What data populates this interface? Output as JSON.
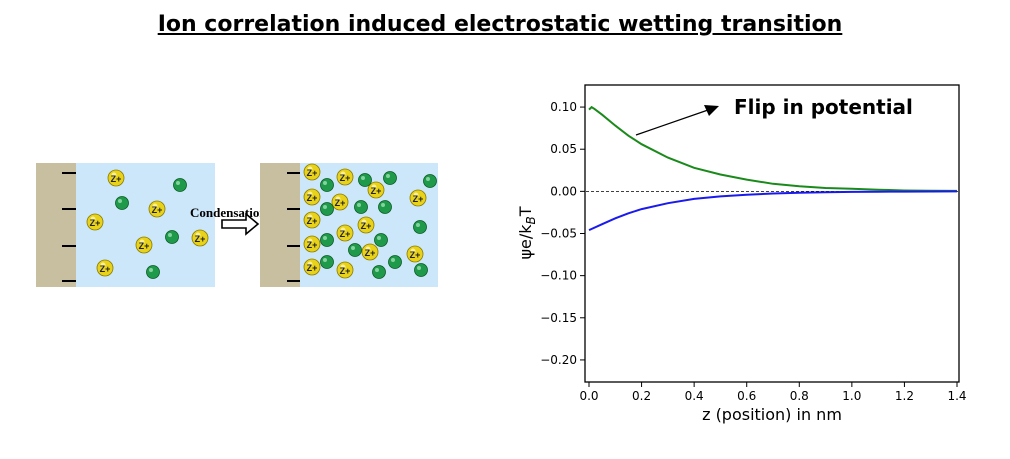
{
  "title": "Ion correlation induced electrostatic wetting transition",
  "diagram": {
    "arrow_label": "Condensation",
    "cation_label": "Z+",
    "colors": {
      "wall": "#c8bfa0",
      "solution": "#cce7f9",
      "cation": "#e8d21a",
      "anion": "#1f9a4a"
    }
  },
  "chart_data": {
    "type": "line",
    "title": "",
    "xlabel": "z (position) in nm",
    "ylabel_main": "ψe/k",
    "ylabel_sub": "B",
    "ylabel_tail": "T",
    "xlim": [
      0.0,
      1.4
    ],
    "ylim": [
      -0.225,
      0.125
    ],
    "xticks": [
      "0.0",
      "0.2",
      "0.4",
      "0.6",
      "0.8",
      "1.0",
      "1.2",
      "1.4"
    ],
    "yticks": [
      "0.10",
      "0.05",
      "0.00",
      "−0.05",
      "−0.10",
      "−0.15",
      "−0.20"
    ],
    "annotation": "Flip in potential",
    "series": [
      {
        "color": "#1a8a1a",
        "x": [
          0.0,
          0.01,
          0.02,
          0.05,
          0.1,
          0.15,
          0.2,
          0.3,
          0.4,
          0.5,
          0.6,
          0.7,
          0.8,
          0.9,
          1.0,
          1.1,
          1.2,
          1.3,
          1.4
        ],
        "y": [
          0.097,
          0.1,
          0.098,
          0.091,
          0.078,
          0.066,
          0.056,
          0.04,
          0.028,
          0.02,
          0.014,
          0.009,
          0.006,
          0.004,
          0.003,
          0.002,
          0.001,
          0.0007,
          0.0005
        ]
      },
      {
        "color": "#1a1aee",
        "x": [
          0.0,
          0.05,
          0.1,
          0.15,
          0.2,
          0.3,
          0.4,
          0.5,
          0.6,
          0.7,
          0.8,
          0.9,
          1.0,
          1.1,
          1.2,
          1.3,
          1.4
        ],
        "y": [
          -0.046,
          -0.039,
          -0.032,
          -0.026,
          -0.021,
          -0.014,
          -0.009,
          -0.006,
          -0.004,
          -0.0025,
          -0.0016,
          -0.001,
          -0.0007,
          -0.0004,
          -0.0003,
          -0.0002,
          -0.0001
        ]
      }
    ]
  }
}
